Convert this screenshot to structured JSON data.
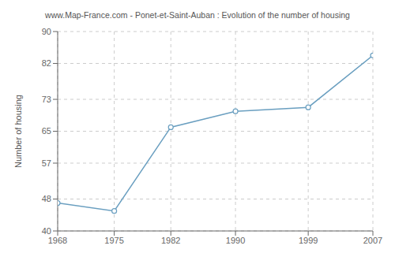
{
  "chart_data": {
    "type": "line",
    "title": "www.Map-France.com - Ponet-et-Saint-Auban : Evolution of the number of housing",
    "ylabel": "Number of housing",
    "x": [
      1968,
      1975,
      1982,
      1990,
      1999,
      2007
    ],
    "values": [
      47,
      45,
      66,
      70,
      71,
      84
    ],
    "color": "#6a9fc0",
    "marker": "circle",
    "xlim": [
      1968,
      2007
    ],
    "xticks": [
      1968,
      1975,
      1982,
      1990,
      1999,
      2007
    ],
    "ylim": [
      40,
      90
    ],
    "yticks": [
      40,
      48,
      57,
      65,
      73,
      82,
      90
    ],
    "grid": true
  }
}
